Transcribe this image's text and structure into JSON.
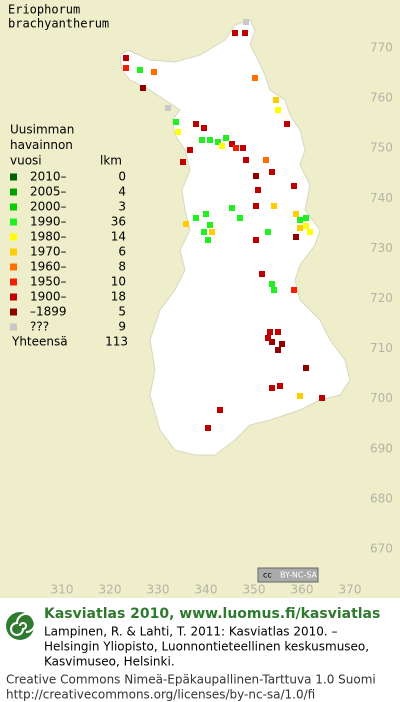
{
  "title": [
    "Eriophorum",
    "brachyantherum"
  ],
  "legend": {
    "heading": [
      "Uusimman",
      "havainnon",
      "vuosi"
    ],
    "count_heading": "lkm",
    "rows": [
      {
        "label": "2010–",
        "count": 0,
        "color": "#006400"
      },
      {
        "label": "2005–",
        "count": 4,
        "color": "#00a000"
      },
      {
        "label": "2000–",
        "count": 3,
        "color": "#00d000"
      },
      {
        "label": "1990–",
        "count": 36,
        "color": "#20f020"
      },
      {
        "label": "1980–",
        "count": 14,
        "color": "#ffff00"
      },
      {
        "label": "1970–",
        "count": 6,
        "color": "#ffcc00"
      },
      {
        "label": "1960–",
        "count": 8,
        "color": "#ff7000"
      },
      {
        "label": "1950–",
        "count": 10,
        "color": "#f02000"
      },
      {
        "label": "1900–",
        "count": 18,
        "color": "#c00000"
      },
      {
        "label": "–1899",
        "count": 5,
        "color": "#900000"
      },
      {
        "label": "???",
        "count": 9,
        "color": "#c8c8c8"
      }
    ],
    "total_label": "Yhteensä",
    "total": 113
  },
  "map": {
    "xticks": [
      310,
      320,
      330,
      340,
      350,
      360,
      370
    ],
    "yticks": [
      770,
      760,
      750,
      740,
      730,
      720,
      710,
      700,
      690,
      680,
      670
    ]
  },
  "badge": [
    "cc",
    "BY-NC-SA"
  ],
  "footer": {
    "site": "Kasviatlas 2010, www.luomus.fi/kasviatlas",
    "citation": [
      "Lampinen, R. & Lahti, T. 2011: Kasviatlas 2010. –",
      "Helsingin Yliopisto, Luonnontieteellinen keskusmuseo,",
      "Kasvimuseo, Helsinki."
    ],
    "license": [
      "Creative Commons Nimeä-Epäkaupallinen-Tarttuva 1.0 Suomi",
      "http://creativecommons.org/licenses/by-nc-sa/1.0/fi"
    ]
  }
}
